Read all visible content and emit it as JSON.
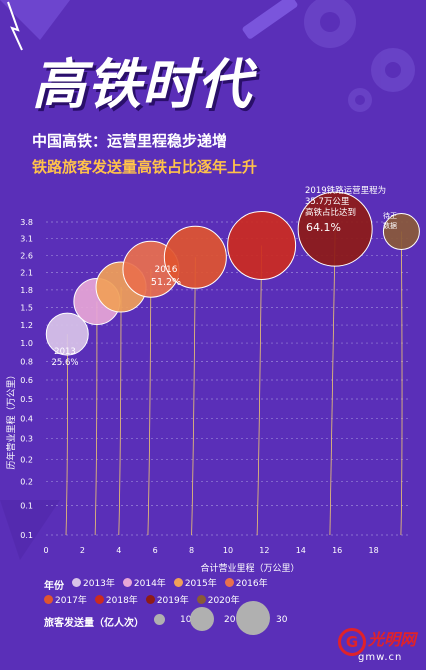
{
  "header": {
    "title": "高铁时代",
    "subtitle1": "中国高铁：运营里程稳步递增",
    "subtitle2": "铁路旅客发送量高铁占比逐年上升"
  },
  "annotations": {
    "callout_2019_line1": "2019铁路运营里程为",
    "callout_2019_line2": "35.7万公里",
    "callout_2019_line3": "高铁占比达到",
    "callout_2019_pct": "64.1%",
    "callout_2016_year": "2016",
    "callout_2016_pct": "51.2%",
    "callout_2013_year": "2013",
    "callout_2013_pct": "25.6%",
    "pending_line1": "待王",
    "pending_line2": "数据"
  },
  "legend": {
    "year_title": "年份",
    "size_title": "旅客发送量（亿人次）",
    "size_values": [
      "10",
      "20",
      "30"
    ]
  },
  "logo": {
    "name": "光明网",
    "domain": "gmw.cn"
  },
  "colors": {
    "background": "#5a2fb8",
    "title_accent": "#ffc24a",
    "grid": "#9a86d8"
  },
  "chart_data": {
    "type": "scatter",
    "xlabel": "合计营业里程（万公里）",
    "ylabel": "历年营业里程（万公里）",
    "xlim": [
      0,
      20
    ],
    "xticks": [
      "0",
      "2",
      "4",
      "6",
      "8",
      "10",
      "12",
      "14",
      "16",
      "18"
    ],
    "yticks": [
      "0.1",
      "0.1",
      "0.2",
      "0.2",
      "0.3",
      "0.4",
      "0.5",
      "0.6",
      "0.8",
      "1.0",
      "1.2",
      "1.5",
      "1.8",
      "2.1",
      "2.6",
      "3.1",
      "3.8"
    ],
    "series": [
      {
        "name": "2013年",
        "color": "#d9c4e8",
        "stem_x": 1.1,
        "y": 1.1,
        "size": 21,
        "label": "2013",
        "pct": "25.6%"
      },
      {
        "name": "2014年",
        "color": "#e7a6d6",
        "stem_x": 2.7,
        "y": 1.6,
        "size": 23
      },
      {
        "name": "2015年",
        "color": "#f0a058",
        "stem_x": 4.0,
        "y": 1.85,
        "size": 25
      },
      {
        "name": "2016年",
        "color": "#e9704d",
        "stem_x": 5.6,
        "y": 2.2,
        "size": 28,
        "label": "2016",
        "pct": "51.2%"
      },
      {
        "name": "2017年",
        "color": "#e0552f",
        "stem_x": 8.0,
        "y": 2.55,
        "size": 31
      },
      {
        "name": "2018年",
        "color": "#cc2b1f",
        "stem_x": 11.6,
        "y": 2.9,
        "size": 34
      },
      {
        "name": "2019年",
        "color": "#8e1b16",
        "stem_x": 15.6,
        "y": 3.5,
        "size": 37,
        "label": "2019",
        "pct": "64.1%"
      },
      {
        "name": "2020年",
        "color": "#8a5a38",
        "stem_x": 19.5,
        "y": 3.4,
        "size": 18
      }
    ]
  }
}
